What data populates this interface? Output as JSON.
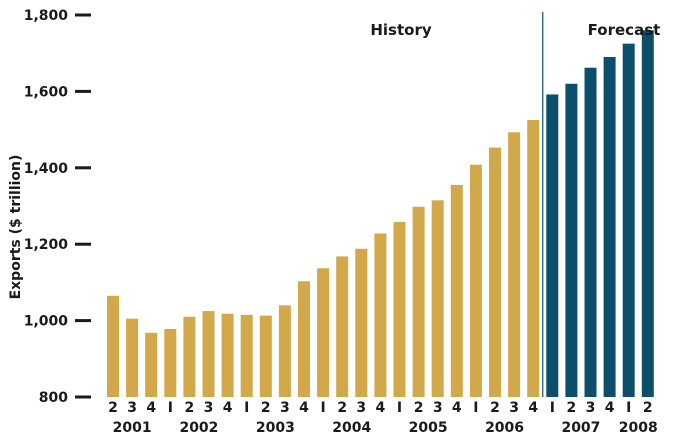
{
  "chart_data": {
    "type": "bar",
    "ylabel": "Exports ($ trillion)",
    "ylim": [
      800,
      1800
    ],
    "yticks": [
      {
        "value": 800,
        "label": "800"
      },
      {
        "value": 1000,
        "label": "1,000"
      },
      {
        "value": 1200,
        "label": "1,200"
      },
      {
        "value": 1400,
        "label": "1,400"
      },
      {
        "value": 1600,
        "label": "1,600"
      },
      {
        "value": 1800,
        "label": "1,800"
      }
    ],
    "regions": [
      {
        "label": "History",
        "color": "#d1a94b"
      },
      {
        "label": "Forecast",
        "color": "#0b4f6c"
      }
    ],
    "divider_after_index": 22,
    "quarters": [
      "2",
      "3",
      "4",
      "I",
      "2",
      "3",
      "4",
      "I",
      "2",
      "3",
      "4",
      "I",
      "2",
      "3",
      "4",
      "I",
      "2",
      "3",
      "4",
      "I",
      "2",
      "3",
      "4",
      "I",
      "2",
      "3",
      "4",
      "I",
      "2"
    ],
    "values": [
      1065,
      1005,
      968,
      978,
      1010,
      1025,
      1018,
      1015,
      1013,
      1040,
      1103,
      1137,
      1168,
      1188,
      1228,
      1258,
      1298,
      1315,
      1355,
      1408,
      1453,
      1493,
      1525,
      1592,
      1620,
      1662,
      1690,
      1725,
      1760
    ],
    "series_index": [
      0,
      0,
      0,
      0,
      0,
      0,
      0,
      0,
      0,
      0,
      0,
      0,
      0,
      0,
      0,
      0,
      0,
      0,
      0,
      0,
      0,
      0,
      0,
      1,
      1,
      1,
      1,
      1,
      1
    ],
    "years": [
      {
        "label": "2001",
        "start": 0,
        "end": 2
      },
      {
        "label": "2002",
        "start": 3,
        "end": 6
      },
      {
        "label": "2003",
        "start": 7,
        "end": 10
      },
      {
        "label": "2004",
        "start": 11,
        "end": 14
      },
      {
        "label": "2005",
        "start": 15,
        "end": 18
      },
      {
        "label": "2006",
        "start": 19,
        "end": 22
      },
      {
        "label": "2007",
        "start": 23,
        "end": 26
      },
      {
        "label": "2008",
        "start": 27,
        "end": 28
      }
    ]
  }
}
